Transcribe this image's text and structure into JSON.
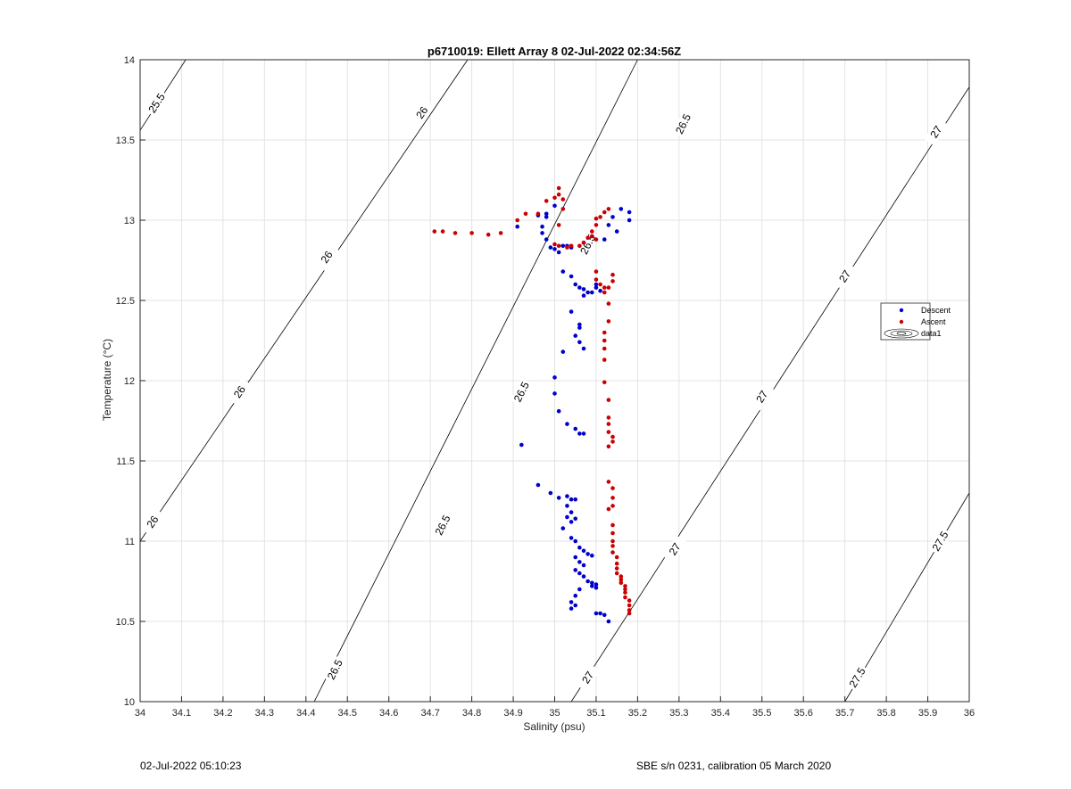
{
  "chart_data": {
    "type": "scatter",
    "title": "p6710019: Ellett Array 8 02-Jul-2022 02:34:56Z",
    "xlabel": "Salinity (psu)",
    "ylabel": "Temperature (°C)",
    "xlim": [
      34,
      36
    ],
    "ylim": [
      10,
      14
    ],
    "xticks": [
      "34",
      "34.1",
      "34.2",
      "34.3",
      "34.4",
      "34.5",
      "34.6",
      "34.7",
      "34.8",
      "34.9",
      "35",
      "35.1",
      "35.2",
      "35.3",
      "35.4",
      "35.5",
      "35.6",
      "35.7",
      "35.8",
      "35.9",
      "36"
    ],
    "yticks": [
      "10",
      "10.5",
      "11",
      "11.5",
      "12",
      "12.5",
      "13",
      "13.5",
      "14"
    ],
    "grid": true,
    "legend_placement": "right",
    "legend": [
      {
        "name": "Descent",
        "color": "#0000cc",
        "marker": "dot"
      },
      {
        "name": "Ascent",
        "color": "#cc0000",
        "marker": "dot"
      },
      {
        "name": "data1",
        "color": "#000000",
        "marker": "contour"
      }
    ],
    "contours": [
      {
        "level": "25.5",
        "points": [
          [
            34.0,
            13.56
          ],
          [
            34.11,
            14.0
          ]
        ],
        "labels": [
          [
            34.04,
            13.73
          ]
        ]
      },
      {
        "level": "26",
        "points": [
          [
            34.0,
            11.0
          ],
          [
            34.79,
            14.0
          ]
        ],
        "labels": [
          [
            34.03,
            11.12
          ],
          [
            34.24,
            11.93
          ],
          [
            34.45,
            12.77
          ],
          [
            34.68,
            13.67
          ]
        ]
      },
      {
        "level": "26.5",
        "points": [
          [
            34.42,
            10.0
          ],
          [
            35.2,
            14.0
          ]
        ],
        "labels": [
          [
            34.47,
            10.2
          ],
          [
            34.73,
            11.1
          ],
          [
            34.92,
            11.93
          ],
          [
            35.08,
            12.85
          ],
          [
            35.31,
            13.6
          ]
        ]
      },
      {
        "level": "27",
        "points": [
          [
            35.04,
            10.0
          ],
          [
            36.0,
            13.83
          ]
        ],
        "labels": [
          [
            35.08,
            10.15
          ],
          [
            35.29,
            10.95
          ],
          [
            35.5,
            11.9
          ],
          [
            35.7,
            12.65
          ],
          [
            35.92,
            13.55
          ]
        ]
      },
      {
        "level": "27.5",
        "points": [
          [
            35.7,
            10.0
          ],
          [
            36.0,
            11.3
          ]
        ],
        "labels": [
          [
            35.73,
            10.15
          ],
          [
            35.93,
            11.0
          ]
        ]
      }
    ],
    "series": [
      {
        "name": "Descent",
        "color": "#0000cc",
        "points": [
          [
            34.92,
            11.6
          ],
          [
            34.96,
            11.35
          ],
          [
            34.99,
            11.3
          ],
          [
            35.01,
            11.27
          ],
          [
            35.03,
            11.28
          ],
          [
            35.04,
            11.26
          ],
          [
            35.05,
            11.26
          ],
          [
            35.03,
            11.22
          ],
          [
            35.04,
            11.18
          ],
          [
            35.03,
            11.15
          ],
          [
            35.04,
            11.12
          ],
          [
            35.05,
            11.14
          ],
          [
            35.02,
            11.08
          ],
          [
            35.04,
            11.02
          ],
          [
            35.05,
            11.0
          ],
          [
            35.06,
            10.96
          ],
          [
            35.07,
            10.94
          ],
          [
            35.08,
            10.92
          ],
          [
            35.09,
            10.91
          ],
          [
            35.05,
            10.9
          ],
          [
            35.06,
            10.87
          ],
          [
            35.07,
            10.85
          ],
          [
            35.05,
            10.82
          ],
          [
            35.06,
            10.8
          ],
          [
            35.07,
            10.78
          ],
          [
            35.08,
            10.75
          ],
          [
            35.09,
            10.74
          ],
          [
            35.1,
            10.73
          ],
          [
            35.09,
            10.72
          ],
          [
            35.1,
            10.71
          ],
          [
            35.06,
            10.7
          ],
          [
            35.05,
            10.66
          ],
          [
            35.04,
            10.62
          ],
          [
            35.05,
            10.6
          ],
          [
            35.04,
            10.58
          ],
          [
            35.1,
            10.55
          ],
          [
            35.11,
            10.55
          ],
          [
            35.12,
            10.54
          ],
          [
            35.13,
            10.5
          ],
          [
            35.0,
            12.02
          ],
          [
            35.0,
            11.92
          ],
          [
            35.01,
            11.81
          ],
          [
            35.03,
            11.73
          ],
          [
            35.05,
            11.7
          ],
          [
            35.06,
            11.67
          ],
          [
            35.07,
            11.67
          ],
          [
            35.02,
            12.18
          ],
          [
            35.06,
            12.35
          ],
          [
            35.06,
            12.33
          ],
          [
            35.05,
            12.28
          ],
          [
            35.06,
            12.24
          ],
          [
            35.07,
            12.2
          ],
          [
            35.04,
            12.43
          ],
          [
            35.04,
            12.65
          ],
          [
            35.05,
            12.6
          ],
          [
            35.06,
            12.58
          ],
          [
            35.07,
            12.57
          ],
          [
            35.08,
            12.55
          ],
          [
            35.07,
            12.53
          ],
          [
            35.09,
            12.55
          ],
          [
            35.1,
            12.58
          ],
          [
            35.11,
            12.56
          ],
          [
            35.1,
            12.6
          ],
          [
            35.02,
            12.68
          ],
          [
            35.01,
            12.8
          ],
          [
            35.0,
            12.82
          ],
          [
            35.02,
            12.84
          ],
          [
            35.03,
            12.84
          ],
          [
            35.04,
            12.83
          ],
          [
            34.99,
            12.83
          ],
          [
            34.98,
            12.88
          ],
          [
            34.97,
            12.92
          ],
          [
            34.97,
            12.96
          ],
          [
            34.98,
            13.02
          ],
          [
            34.98,
            13.04
          ],
          [
            34.96,
            13.03
          ],
          [
            34.91,
            12.96
          ],
          [
            35.0,
            13.09
          ],
          [
            35.07,
            12.86
          ],
          [
            35.09,
            12.9
          ],
          [
            35.12,
            12.88
          ],
          [
            35.13,
            12.97
          ],
          [
            35.14,
            13.02
          ],
          [
            35.15,
            12.93
          ],
          [
            35.16,
            13.07
          ],
          [
            35.18,
            13.05
          ],
          [
            35.18,
            13.0
          ]
        ]
      },
      {
        "name": "Ascent",
        "color": "#cc0000",
        "points": [
          [
            35.18,
            10.55
          ],
          [
            35.18,
            10.57
          ],
          [
            35.18,
            10.6
          ],
          [
            35.18,
            10.63
          ],
          [
            35.17,
            10.65
          ],
          [
            35.17,
            10.68
          ],
          [
            35.17,
            10.7
          ],
          [
            35.17,
            10.72
          ],
          [
            35.16,
            10.74
          ],
          [
            35.16,
            10.76
          ],
          [
            35.16,
            10.78
          ],
          [
            35.15,
            10.8
          ],
          [
            35.15,
            10.83
          ],
          [
            35.15,
            10.86
          ],
          [
            35.15,
            10.9
          ],
          [
            35.14,
            10.93
          ],
          [
            35.14,
            10.97
          ],
          [
            35.14,
            11.0
          ],
          [
            35.14,
            11.05
          ],
          [
            35.14,
            11.1
          ],
          [
            35.13,
            11.2
          ],
          [
            35.14,
            11.22
          ],
          [
            35.14,
            11.27
          ],
          [
            35.14,
            11.33
          ],
          [
            35.13,
            11.37
          ],
          [
            35.14,
            11.62
          ],
          [
            35.14,
            11.65
          ],
          [
            35.13,
            11.68
          ],
          [
            35.13,
            11.73
          ],
          [
            35.13,
            11.77
          ],
          [
            35.13,
            11.88
          ],
          [
            35.12,
            11.99
          ],
          [
            35.12,
            12.13
          ],
          [
            35.12,
            12.2
          ],
          [
            35.12,
            12.25
          ],
          [
            35.12,
            12.3
          ],
          [
            35.13,
            12.37
          ],
          [
            35.13,
            12.48
          ],
          [
            35.13,
            11.59
          ],
          [
            35.12,
            12.55
          ],
          [
            35.13,
            12.58
          ],
          [
            35.14,
            12.62
          ],
          [
            35.14,
            12.66
          ],
          [
            35.11,
            12.6
          ],
          [
            35.12,
            12.58
          ],
          [
            35.1,
            12.63
          ],
          [
            35.1,
            12.68
          ],
          [
            35.1,
            12.88
          ],
          [
            35.09,
            12.9
          ],
          [
            35.08,
            12.89
          ],
          [
            35.07,
            12.86
          ],
          [
            35.06,
            12.84
          ],
          [
            35.04,
            12.84
          ],
          [
            35.03,
            12.83
          ],
          [
            35.01,
            12.84
          ],
          [
            35.0,
            12.85
          ],
          [
            35.01,
            12.97
          ],
          [
            35.02,
            13.07
          ],
          [
            35.02,
            13.13
          ],
          [
            35.01,
            13.16
          ],
          [
            35.01,
            13.2
          ],
          [
            35.0,
            13.14
          ],
          [
            34.98,
            13.12
          ],
          [
            34.96,
            13.04
          ],
          [
            34.93,
            13.04
          ],
          [
            34.91,
            13.0
          ],
          [
            34.87,
            12.92
          ],
          [
            34.84,
            12.91
          ],
          [
            34.8,
            12.92
          ],
          [
            34.76,
            12.92
          ],
          [
            34.73,
            12.93
          ],
          [
            34.71,
            12.93
          ],
          [
            35.1,
            13.01
          ],
          [
            35.11,
            13.02
          ],
          [
            35.12,
            13.05
          ],
          [
            35.13,
            13.07
          ],
          [
            35.1,
            12.97
          ],
          [
            35.09,
            12.93
          ]
        ]
      }
    ]
  },
  "footer": {
    "left": "02-Jul-2022 05:10:23",
    "right": "SBE s/n 0231, calibration 05 March 2020"
  }
}
